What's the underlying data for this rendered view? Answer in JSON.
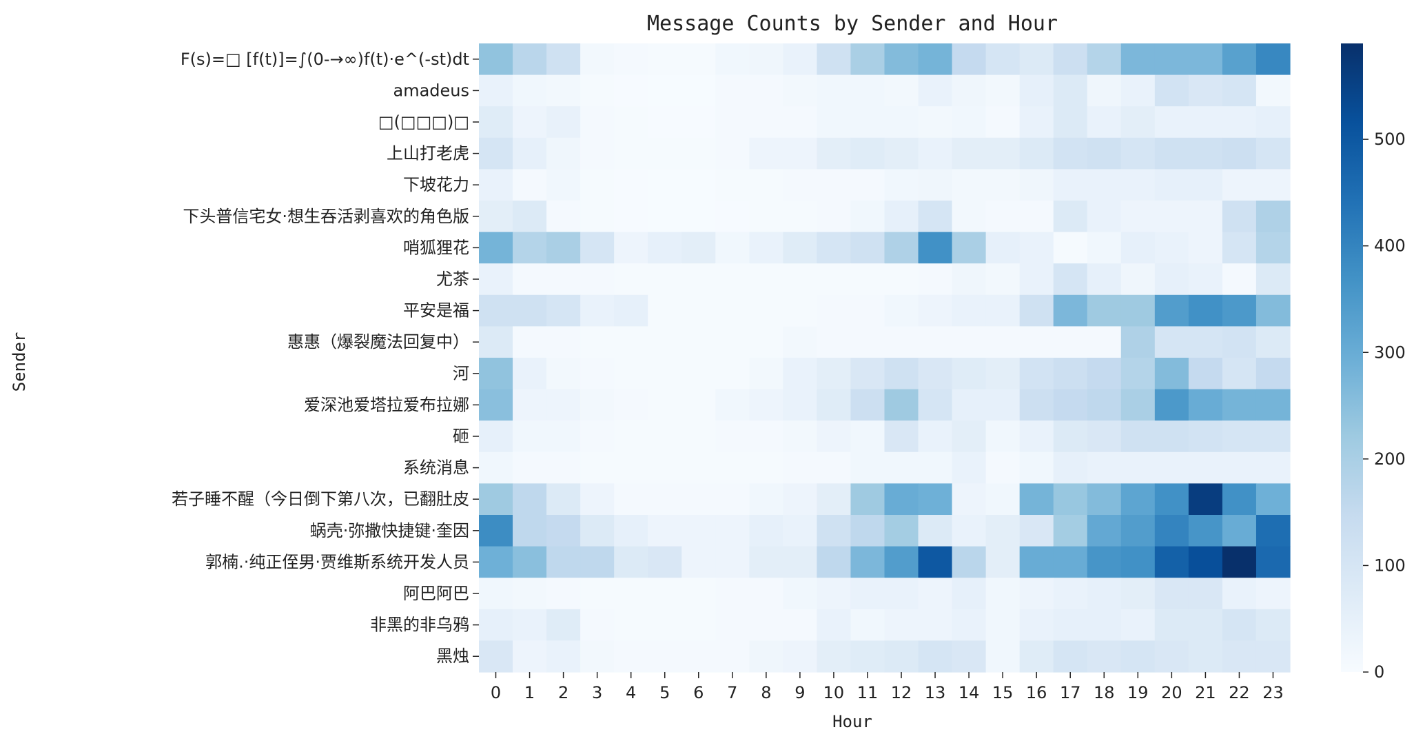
{
  "chart_data": {
    "type": "heatmap",
    "title": "Message Counts by Sender and Hour",
    "xlabel": "Hour",
    "ylabel": "Sender",
    "x": [
      "0",
      "1",
      "2",
      "3",
      "4",
      "5",
      "6",
      "7",
      "8",
      "9",
      "10",
      "11",
      "12",
      "13",
      "14",
      "15",
      "16",
      "17",
      "18",
      "19",
      "20",
      "21",
      "22",
      "23"
    ],
    "y": [
      "F(s)=□ [f(t)]=∫(0-→∞)f(t)·e^(-st)dt",
      "amadeus",
      "□(□□□)□",
      "上山打老虎",
      "下坡花力",
      "下头普信宅女·想生吞活剥喜欢的角色版",
      "哨狐狸花",
      "尤茶",
      "平安是福",
      "惠惠（爆裂魔法回复中）",
      "河",
      "爱深池爱塔拉爱布拉娜",
      "砸",
      "系统消息",
      "若子睡不醒（今日倒下第八次，已翻肚皮",
      "蜗壳·弥撒快捷键·奎因",
      "郭楠.·纯正侄男·贾维斯系统开发人员",
      "阿巴阿巴",
      "非黑的非乌鸦",
      "黑烛"
    ],
    "values": [
      [
        240,
        170,
        120,
        15,
        8,
        5,
        5,
        20,
        25,
        40,
        120,
        200,
        260,
        280,
        150,
        100,
        80,
        130,
        180,
        270,
        270,
        270,
        330,
        390
      ],
      [
        40,
        20,
        15,
        5,
        3,
        2,
        2,
        10,
        10,
        15,
        20,
        20,
        15,
        40,
        25,
        15,
        50,
        80,
        25,
        40,
        110,
        90,
        100,
        15
      ],
      [
        70,
        30,
        45,
        8,
        5,
        3,
        3,
        8,
        8,
        10,
        20,
        20,
        20,
        15,
        20,
        10,
        40,
        80,
        40,
        60,
        40,
        40,
        40,
        50
      ],
      [
        100,
        50,
        25,
        10,
        5,
        5,
        5,
        10,
        30,
        30,
        60,
        70,
        60,
        40,
        60,
        60,
        80,
        110,
        120,
        100,
        120,
        120,
        130,
        100
      ],
      [
        40,
        8,
        20,
        5,
        3,
        2,
        2,
        5,
        5,
        8,
        10,
        10,
        20,
        25,
        15,
        15,
        25,
        40,
        40,
        40,
        50,
        50,
        30,
        30
      ],
      [
        60,
        80,
        10,
        5,
        3,
        2,
        2,
        3,
        5,
        5,
        10,
        20,
        50,
        100,
        15,
        10,
        10,
        80,
        40,
        30,
        30,
        30,
        120,
        190
      ],
      [
        280,
        180,
        200,
        100,
        30,
        50,
        60,
        20,
        40,
        70,
        100,
        120,
        190,
        370,
        200,
        50,
        40,
        5,
        20,
        50,
        40,
        30,
        100,
        180
      ],
      [
        40,
        10,
        10,
        10,
        5,
        5,
        5,
        5,
        5,
        5,
        5,
        5,
        5,
        10,
        25,
        15,
        40,
        100,
        50,
        25,
        50,
        40,
        10,
        80
      ],
      [
        120,
        120,
        100,
        40,
        50,
        5,
        5,
        5,
        5,
        5,
        10,
        10,
        20,
        30,
        40,
        40,
        120,
        270,
        220,
        220,
        340,
        370,
        350,
        260
      ],
      [
        80,
        8,
        8,
        5,
        5,
        5,
        5,
        5,
        5,
        15,
        10,
        10,
        10,
        10,
        10,
        10,
        10,
        10,
        10,
        190,
        100,
        100,
        110,
        80
      ],
      [
        240,
        40,
        15,
        10,
        5,
        5,
        5,
        5,
        15,
        40,
        60,
        90,
        120,
        90,
        70,
        60,
        110,
        130,
        150,
        180,
        260,
        150,
        100,
        150
      ],
      [
        250,
        30,
        30,
        15,
        10,
        5,
        5,
        20,
        30,
        40,
        70,
        130,
        220,
        100,
        50,
        50,
        130,
        150,
        160,
        200,
        350,
        300,
        280,
        280
      ],
      [
        50,
        20,
        20,
        10,
        5,
        5,
        5,
        10,
        10,
        15,
        30,
        20,
        90,
        40,
        60,
        20,
        40,
        80,
        90,
        120,
        120,
        110,
        100,
        100
      ],
      [
        20,
        10,
        10,
        5,
        5,
        5,
        5,
        5,
        5,
        10,
        10,
        20,
        20,
        20,
        40,
        10,
        20,
        50,
        40,
        40,
        40,
        40,
        40,
        40
      ],
      [
        220,
        160,
        80,
        30,
        10,
        8,
        8,
        10,
        20,
        30,
        60,
        220,
        300,
        290,
        30,
        20,
        280,
        230,
        260,
        320,
        370,
        560,
        370,
        290
      ],
      [
        380,
        160,
        150,
        80,
        50,
        30,
        30,
        30,
        50,
        40,
        120,
        160,
        210,
        80,
        40,
        60,
        90,
        210,
        310,
        340,
        400,
        360,
        300,
        450
      ],
      [
        290,
        250,
        160,
        160,
        80,
        90,
        30,
        30,
        60,
        60,
        160,
        270,
        340,
        500,
        170,
        60,
        300,
        300,
        360,
        370,
        480,
        520,
        590,
        460
      ],
      [
        20,
        15,
        10,
        5,
        5,
        5,
        5,
        10,
        10,
        20,
        30,
        40,
        40,
        30,
        50,
        20,
        30,
        40,
        50,
        60,
        90,
        90,
        40,
        30
      ],
      [
        50,
        40,
        70,
        10,
        5,
        5,
        5,
        8,
        8,
        10,
        40,
        20,
        30,
        30,
        40,
        20,
        40,
        50,
        50,
        40,
        80,
        80,
        100,
        80
      ],
      [
        90,
        30,
        40,
        15,
        10,
        10,
        10,
        10,
        25,
        30,
        60,
        70,
        80,
        100,
        90,
        20,
        70,
        100,
        90,
        100,
        90,
        80,
        90,
        90
      ]
    ],
    "vmin": 0,
    "vmax": 590,
    "colorbar_ticks": [
      0,
      100,
      200,
      300,
      400,
      500
    ],
    "colormap": "Blues",
    "colors": {
      "low": "#f7fbff",
      "high": "#08306b"
    },
    "grid": false
  }
}
